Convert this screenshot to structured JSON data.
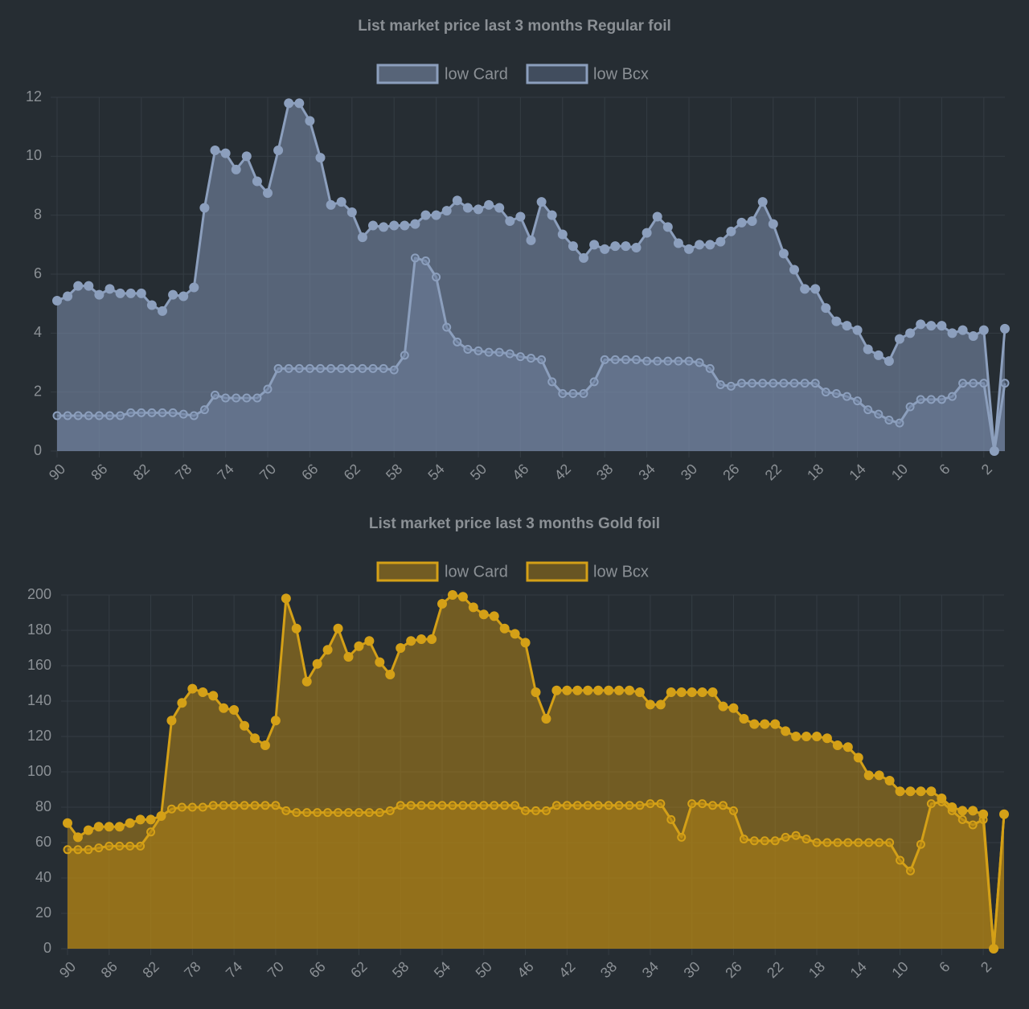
{
  "chart_data": [
    {
      "type": "line",
      "title": "List market price last 3 months Regular foil",
      "categories": [
        90,
        null,
        null,
        null,
        86,
        null,
        null,
        null,
        82,
        null,
        null,
        null,
        78,
        null,
        null,
        null,
        74,
        null,
        null,
        null,
        70,
        null,
        null,
        null,
        66,
        null,
        null,
        null,
        62,
        null,
        null,
        null,
        58,
        null,
        null,
        null,
        54,
        null,
        null,
        null,
        50,
        null,
        null,
        null,
        46,
        null,
        null,
        null,
        42,
        null,
        null,
        null,
        38,
        null,
        null,
        null,
        34,
        null,
        null,
        null,
        30,
        null,
        null,
        null,
        26,
        null,
        null,
        null,
        22,
        null,
        null,
        null,
        18,
        null,
        null,
        null,
        14,
        null,
        null,
        null,
        10,
        null,
        null,
        null,
        6,
        null,
        null,
        null,
        2,
        null,
        null
      ],
      "series": [
        {
          "name": "low Card",
          "color": "#8c9fbd",
          "fill": "rgba(128,146,176,0.55)",
          "point_style": "filled",
          "values": [
            5.1,
            5.25,
            5.6,
            5.6,
            5.3,
            5.5,
            5.35,
            5.35,
            5.35,
            4.95,
            4.75,
            5.3,
            5.25,
            5.55,
            8.25,
            10.2,
            10.1,
            9.55,
            10.0,
            9.15,
            8.75,
            10.2,
            11.8,
            11.8,
            11.2,
            9.95,
            8.35,
            8.45,
            8.1,
            7.25,
            7.65,
            7.6,
            7.65,
            7.65,
            7.7,
            8.0,
            8.0,
            8.15,
            8.5,
            8.25,
            8.2,
            8.35,
            8.25,
            7.8,
            7.95,
            7.15,
            8.45,
            8.0,
            7.35,
            6.95,
            6.55,
            7.0,
            6.85,
            6.95,
            6.95,
            6.9,
            7.4,
            7.95,
            7.6,
            7.05,
            6.85,
            7.0,
            7.0,
            7.1,
            7.45,
            7.75,
            7.8,
            8.45,
            7.7,
            6.7,
            6.15,
            5.5,
            5.5,
            4.85,
            4.4,
            4.25,
            4.1,
            3.45,
            3.25,
            3.05,
            3.8,
            4.0,
            4.3,
            4.25,
            4.25,
            4.0,
            4.1,
            3.9,
            4.1,
            0,
            4.15
          ]
        },
        {
          "name": "low Bcx",
          "color": "#8c9fbd",
          "fill": "rgba(100,118,146,0.45)",
          "point_style": "hollow",
          "values": [
            1.2,
            1.2,
            1.2,
            1.2,
            1.2,
            1.2,
            1.2,
            1.3,
            1.3,
            1.3,
            1.3,
            1.3,
            1.25,
            1.2,
            1.4,
            1.9,
            1.8,
            1.8,
            1.8,
            1.8,
            2.1,
            2.8,
            2.8,
            2.8,
            2.8,
            2.8,
            2.8,
            2.8,
            2.8,
            2.8,
            2.8,
            2.8,
            2.75,
            3.25,
            6.55,
            6.45,
            5.9,
            4.2,
            3.7,
            3.45,
            3.4,
            3.35,
            3.35,
            3.3,
            3.2,
            3.15,
            3.1,
            2.35,
            1.95,
            1.95,
            1.95,
            2.35,
            3.1,
            3.1,
            3.1,
            3.1,
            3.05,
            3.05,
            3.05,
            3.05,
            3.05,
            3.0,
            2.8,
            2.25,
            2.2,
            2.3,
            2.3,
            2.3,
            2.3,
            2.3,
            2.3,
            2.3,
            2.3,
            2.0,
            1.95,
            1.85,
            1.7,
            1.4,
            1.25,
            1.05,
            0.95,
            1.5,
            1.75,
            1.75,
            1.75,
            1.85,
            2.3,
            2.3,
            2.3,
            0,
            2.3
          ]
        }
      ],
      "ylim": [
        0,
        12
      ],
      "yticks": [
        0,
        2,
        4,
        6,
        8,
        10,
        12
      ],
      "grid": true
    },
    {
      "type": "line",
      "title": "List market price last 3 months Gold foil",
      "categories": [
        90,
        null,
        null,
        null,
        86,
        null,
        null,
        null,
        82,
        null,
        null,
        null,
        78,
        null,
        null,
        null,
        74,
        null,
        null,
        null,
        70,
        null,
        null,
        null,
        66,
        null,
        null,
        null,
        62,
        null,
        null,
        null,
        58,
        null,
        null,
        null,
        54,
        null,
        null,
        null,
        50,
        null,
        null,
        null,
        46,
        null,
        null,
        null,
        42,
        null,
        null,
        null,
        38,
        null,
        null,
        null,
        34,
        null,
        null,
        null,
        30,
        null,
        null,
        null,
        26,
        null,
        null,
        null,
        22,
        null,
        null,
        null,
        18,
        null,
        null,
        null,
        14,
        null,
        null,
        null,
        10,
        null,
        null,
        null,
        6,
        null,
        null,
        null,
        2,
        null,
        null
      ],
      "series": [
        {
          "name": "low Card",
          "color": "#d4a017",
          "fill": "rgba(190,140,20,0.5)",
          "point_style": "filled",
          "values": [
            71,
            63,
            67,
            69,
            69,
            69,
            71,
            73,
            73,
            75,
            129,
            139,
            147,
            145,
            143,
            136,
            135,
            126,
            119,
            115,
            129,
            198,
            181,
            151,
            161,
            169,
            181,
            165,
            171,
            174,
            162,
            155,
            170,
            174,
            175,
            175,
            195,
            200,
            199,
            193,
            189,
            188,
            181,
            178,
            173,
            145,
            130,
            146,
            146,
            146,
            146,
            146,
            146,
            146,
            146,
            145,
            138,
            138,
            145,
            145,
            145,
            145,
            145,
            137,
            136,
            130,
            127,
            127,
            127,
            123,
            120,
            120,
            120,
            119,
            115,
            114,
            108,
            98,
            98,
            95,
            89,
            89,
            89,
            89,
            85,
            80,
            78,
            78,
            76,
            0,
            76
          ]
        },
        {
          "name": "low Bcx",
          "color": "#d4a017",
          "fill": "rgba(170,125,20,0.5)",
          "point_style": "hollow",
          "values": [
            56,
            56,
            56,
            57,
            58,
            58,
            58,
            58,
            66,
            75,
            79,
            80,
            80,
            80,
            81,
            81,
            81,
            81,
            81,
            81,
            81,
            78,
            77,
            77,
            77,
            77,
            77,
            77,
            77,
            77,
            77,
            78,
            81,
            81,
            81,
            81,
            81,
            81,
            81,
            81,
            81,
            81,
            81,
            81,
            78,
            78,
            78,
            81,
            81,
            81,
            81,
            81,
            81,
            81,
            81,
            81,
            82,
            82,
            73,
            63,
            82,
            82,
            81,
            81,
            78,
            62,
            61,
            61,
            61,
            63,
            64,
            62,
            60,
            60,
            60,
            60,
            60,
            60,
            60,
            60,
            50,
            44,
            59,
            82,
            83,
            78,
            73,
            70,
            73,
            0,
            76
          ]
        }
      ],
      "ylim": [
        0,
        200
      ],
      "yticks": [
        0,
        20,
        40,
        60,
        80,
        100,
        120,
        140,
        160,
        180,
        200
      ],
      "grid": true
    }
  ]
}
